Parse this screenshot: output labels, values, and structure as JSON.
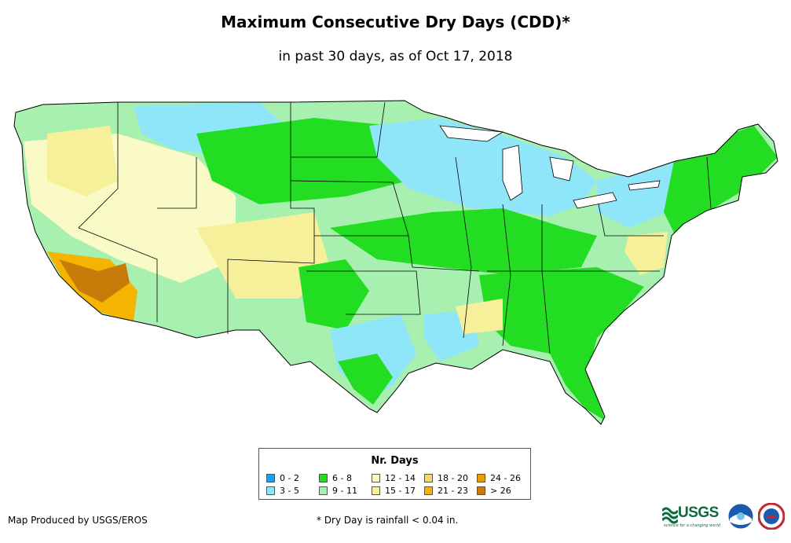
{
  "title": "Maximum Consecutive Dry Days (CDD)*",
  "subtitle": "in past 30 days, as of Oct 17, 2018",
  "legend": {
    "title": "Nr. Days",
    "items": [
      {
        "label": "0 - 2",
        "color": "#1f9ee8"
      },
      {
        "label": "3 - 5",
        "color": "#8ee6f8"
      },
      {
        "label": "6 - 8",
        "color": "#22dd22"
      },
      {
        "label": "9 - 11",
        "color": "#a8f0b0"
      },
      {
        "label": "12 - 14",
        "color": "#fafac6"
      },
      {
        "label": "15 - 17",
        "color": "#f7f09a"
      },
      {
        "label": "18 - 20",
        "color": "#f5d86a"
      },
      {
        "label": "21 - 23",
        "color": "#f5b400"
      },
      {
        "label": "24 - 26",
        "color": "#e89d00"
      },
      {
        "label": "> 26",
        "color": "#c97b0a"
      }
    ]
  },
  "credit": "Map Produced by USGS/EROS",
  "footnote": "* Dry Day is rainfall < 0.04 in.",
  "logos": {
    "usgs": "USGS",
    "usgs_tagline": "science for a changing world",
    "noaa_icon": "noaa-logo-icon",
    "nws_icon": "nws-logo-icon"
  }
}
